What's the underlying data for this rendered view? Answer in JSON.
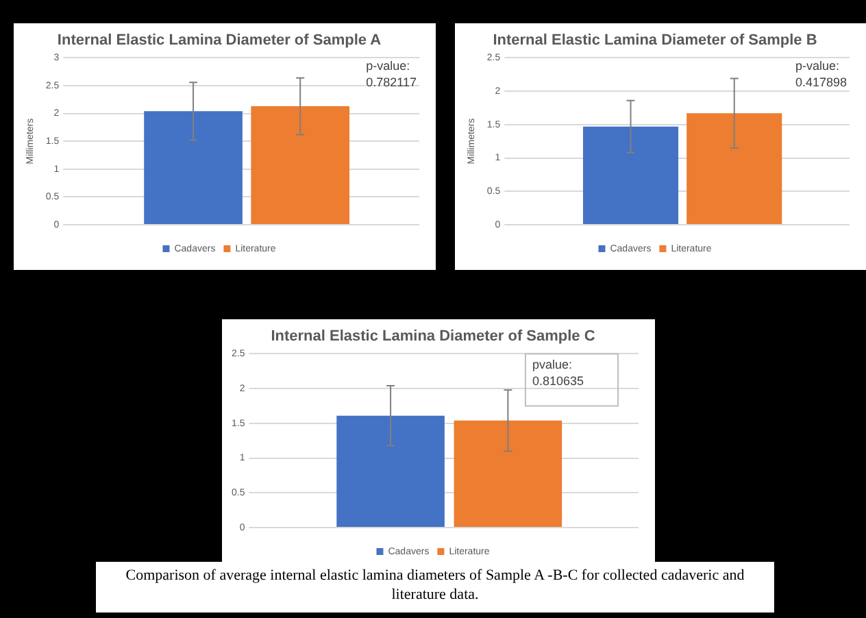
{
  "chart_data": [
    {
      "type": "bar",
      "title": "Internal Elastic Lamina Diameter of Sample A",
      "ylabel": "Millimeters",
      "categories": [
        null
      ],
      "series": [
        {
          "name": "Cadavers",
          "color": "#4472c4",
          "values": [
            2.04
          ],
          "errors": [
            0.52
          ]
        },
        {
          "name": "Literature",
          "color": "#ed7d31",
          "values": [
            2.13
          ],
          "errors": [
            0.51
          ]
        }
      ],
      "ylim": [
        0,
        3
      ],
      "yticks": [
        0,
        0.5,
        1,
        1.5,
        2,
        2.5,
        3
      ],
      "grid": "y",
      "legend": "bottom",
      "tick_labels": "y",
      "annotations": [
        "p-value:",
        "0.782117"
      ]
    },
    {
      "type": "bar",
      "title": "Internal Elastic Lamina Diameter of Sample B",
      "ylabel": "Millimeters",
      "categories": [
        null
      ],
      "series": [
        {
          "name": "Cadavers",
          "color": "#4472c4",
          "values": [
            1.47
          ],
          "errors": [
            0.39
          ]
        },
        {
          "name": "Literature",
          "color": "#ed7d31",
          "values": [
            1.67
          ],
          "errors": [
            0.52
          ]
        }
      ],
      "ylim": [
        0,
        2.5
      ],
      "yticks": [
        0,
        0.5,
        1,
        1.5,
        2,
        2.5
      ],
      "grid": "y",
      "legend": "bottom",
      "tick_labels": "y",
      "annotations": [
        "p-value:",
        "0.417898"
      ]
    },
    {
      "type": "bar",
      "title": "Internal Elastic Lamina Diameter of Sample C",
      "categories": [
        null
      ],
      "series": [
        {
          "name": "Cadavers",
          "color": "#4472c4",
          "values": [
            1.61
          ],
          "errors": [
            0.43
          ]
        },
        {
          "name": "Literature",
          "color": "#ed7d31",
          "values": [
            1.54
          ],
          "errors": [
            0.44
          ]
        }
      ],
      "ylim": [
        0,
        2.5
      ],
      "yticks": [
        0,
        0.5,
        1,
        1.5,
        2,
        2.5
      ],
      "grid": "y",
      "legend": "bottom",
      "tick_labels": "y",
      "annotations": [
        "pvalue:",
        "0.810635"
      ]
    },
    {
      "type": "other",
      "annotations": [
        "Comparison of average internal elastic lamina diameters of  Sample A -B-C for collected cadaveric and literature data."
      ]
    }
  ]
}
